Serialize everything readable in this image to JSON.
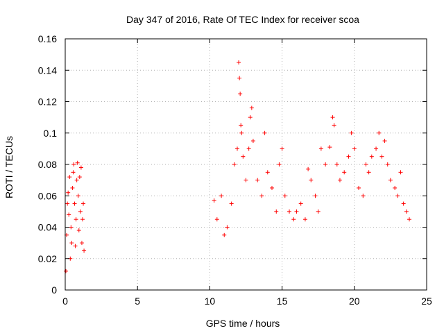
{
  "chart_data": {
    "type": "scatter",
    "title": "Day 347 of 2016, Rate Of TEC Index for receiver scoa",
    "xlabel": "GPS time / hours",
    "ylabel": "ROTI / TECUs",
    "xlim": [
      0,
      25
    ],
    "ylim": [
      0,
      0.16
    ],
    "x_ticks": [
      "0",
      "5",
      "10",
      "15",
      "20",
      "25"
    ],
    "y_ticks": [
      "0",
      "0.02",
      "0.04",
      "0.06",
      "0.08",
      "0.1",
      "0.12",
      "0.14",
      "0.16"
    ],
    "grid": true,
    "marker": "+",
    "color": "#ff0000",
    "series": [
      {
        "points": [
          [
            0.05,
            0.012
          ],
          [
            0.1,
            0.035
          ],
          [
            0.15,
            0.055
          ],
          [
            0.2,
            0.062
          ],
          [
            0.25,
            0.048
          ],
          [
            0.3,
            0.072
          ],
          [
            0.35,
            0.02
          ],
          [
            0.4,
            0.04
          ],
          [
            0.45,
            0.03
          ],
          [
            0.5,
            0.065
          ],
          [
            0.55,
            0.075
          ],
          [
            0.6,
            0.08
          ],
          [
            0.65,
            0.055
          ],
          [
            0.7,
            0.028
          ],
          [
            0.75,
            0.045
          ],
          [
            0.8,
            0.07
          ],
          [
            0.85,
            0.081
          ],
          [
            0.9,
            0.06
          ],
          [
            0.95,
            0.038
          ],
          [
            1.0,
            0.072
          ],
          [
            1.05,
            0.05
          ],
          [
            1.1,
            0.078
          ],
          [
            1.15,
            0.03
          ],
          [
            1.2,
            0.045
          ],
          [
            1.25,
            0.055
          ],
          [
            1.3,
            0.025
          ],
          [
            10.3,
            0.057
          ],
          [
            10.5,
            0.045
          ],
          [
            10.8,
            0.06
          ],
          [
            11.0,
            0.035
          ],
          [
            11.2,
            0.04
          ],
          [
            11.5,
            0.055
          ],
          [
            11.7,
            0.08
          ],
          [
            11.9,
            0.09
          ],
          [
            12.0,
            0.145
          ],
          [
            12.05,
            0.135
          ],
          [
            12.1,
            0.125
          ],
          [
            12.15,
            0.105
          ],
          [
            12.2,
            0.1
          ],
          [
            12.3,
            0.085
          ],
          [
            12.5,
            0.07
          ],
          [
            12.7,
            0.09
          ],
          [
            12.8,
            0.11
          ],
          [
            12.9,
            0.116
          ],
          [
            13.0,
            0.095
          ],
          [
            13.3,
            0.07
          ],
          [
            13.6,
            0.06
          ],
          [
            13.8,
            0.1
          ],
          [
            14.0,
            0.075
          ],
          [
            14.3,
            0.065
          ],
          [
            14.6,
            0.05
          ],
          [
            14.8,
            0.08
          ],
          [
            15.0,
            0.09
          ],
          [
            15.2,
            0.06
          ],
          [
            15.5,
            0.05
          ],
          [
            15.8,
            0.045
          ],
          [
            16.0,
            0.05
          ],
          [
            16.3,
            0.055
          ],
          [
            16.6,
            0.045
          ],
          [
            16.8,
            0.077
          ],
          [
            17.0,
            0.07
          ],
          [
            17.3,
            0.06
          ],
          [
            17.5,
            0.05
          ],
          [
            17.7,
            0.09
          ],
          [
            18.0,
            0.08
          ],
          [
            18.3,
            0.091
          ],
          [
            18.5,
            0.11
          ],
          [
            18.6,
            0.105
          ],
          [
            18.8,
            0.08
          ],
          [
            19.0,
            0.07
          ],
          [
            19.3,
            0.075
          ],
          [
            19.6,
            0.085
          ],
          [
            19.8,
            0.1
          ],
          [
            20.0,
            0.09
          ],
          [
            20.3,
            0.065
          ],
          [
            20.6,
            0.06
          ],
          [
            20.8,
            0.08
          ],
          [
            21.0,
            0.075
          ],
          [
            21.2,
            0.085
          ],
          [
            21.5,
            0.09
          ],
          [
            21.7,
            0.1
          ],
          [
            21.9,
            0.085
          ],
          [
            22.1,
            0.095
          ],
          [
            22.3,
            0.08
          ],
          [
            22.5,
            0.07
          ],
          [
            22.8,
            0.065
          ],
          [
            23.0,
            0.06
          ],
          [
            23.2,
            0.075
          ],
          [
            23.4,
            0.055
          ],
          [
            23.6,
            0.05
          ],
          [
            23.8,
            0.045
          ]
        ]
      }
    ]
  }
}
